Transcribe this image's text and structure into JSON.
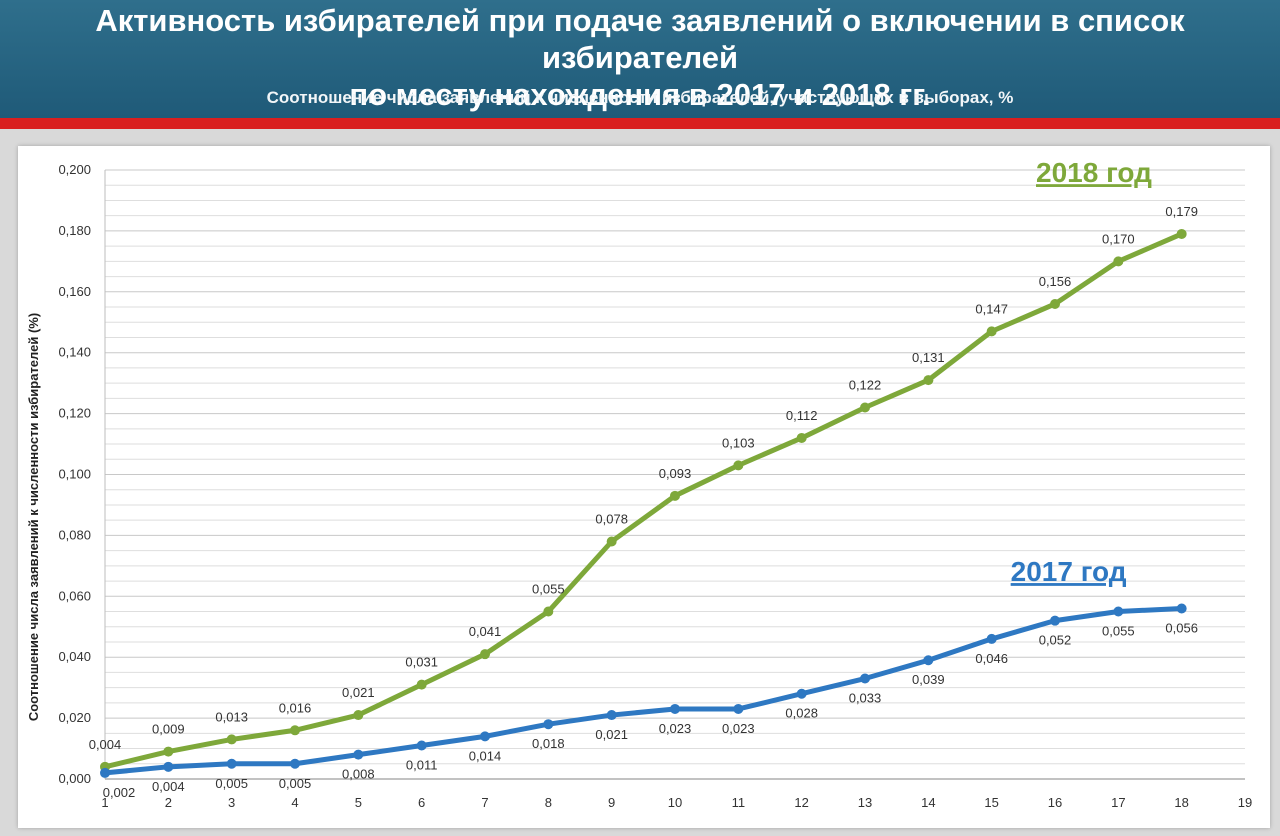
{
  "header": {
    "title_line1": "Активность избирателей при подаче заявлений о включении в список избирателей",
    "title_line2": "по месту нахождения в 2017 и 2018 гг.",
    "subtitle": "Соотношение числа заявлений к численности избирателей, участвующих в выборах, %"
  },
  "colors": {
    "header_bg": "#24637f",
    "red_bar": "#d91f1f",
    "series_2018": "#7ea83a",
    "series_2017": "#2e78c2"
  },
  "chart_data": {
    "type": "line",
    "ylabel": "Соотношение числа заявлений к численности избирателей (%)",
    "xlabel": "",
    "xlim": [
      1,
      19
    ],
    "ylim": [
      0,
      0.2
    ],
    "x_ticks": [
      1,
      2,
      3,
      4,
      5,
      6,
      7,
      8,
      9,
      10,
      11,
      12,
      13,
      14,
      15,
      16,
      17,
      18,
      19
    ],
    "y_ticks": [
      0.0,
      0.02,
      0.04,
      0.06,
      0.08,
      0.1,
      0.12,
      0.14,
      0.16,
      0.18,
      0.2
    ],
    "y_tick_labels": [
      "0,000",
      "0,020",
      "0,040",
      "0,060",
      "0,080",
      "0,100",
      "0,120",
      "0,140",
      "0,160",
      "0,180",
      "0,200"
    ],
    "grid": true,
    "series": [
      {
        "name": "2018 год",
        "color": "#7ea83a",
        "x": [
          1,
          2,
          3,
          4,
          5,
          6,
          7,
          8,
          9,
          10,
          11,
          12,
          13,
          14,
          15,
          16,
          17,
          18
        ],
        "values": [
          0.004,
          0.009,
          0.013,
          0.016,
          0.021,
          0.031,
          0.041,
          0.055,
          0.078,
          0.093,
          0.103,
          0.112,
          0.122,
          0.131,
          0.147,
          0.156,
          0.17,
          0.179
        ],
        "labels": [
          "0,004",
          "0,009",
          "0,013",
          "0,016",
          "0,021",
          "0,031",
          "0,041",
          "0,055",
          "0,078",
          "0,093",
          "0,103",
          "0,112",
          "0,122",
          "0,131",
          "0,147",
          "0,156",
          "0,170",
          "0,179"
        ],
        "label_position": "above"
      },
      {
        "name": "2017 год",
        "color": "#2e78c2",
        "x": [
          1,
          2,
          3,
          4,
          5,
          6,
          7,
          8,
          9,
          10,
          11,
          12,
          13,
          14,
          15,
          16,
          17,
          18
        ],
        "values": [
          0.002,
          0.004,
          0.005,
          0.005,
          0.008,
          0.011,
          0.014,
          0.018,
          0.021,
          0.023,
          0.023,
          0.028,
          0.033,
          0.039,
          0.046,
          0.052,
          0.055,
          0.056
        ],
        "labels": [
          "0,002",
          "0,004",
          "0,005",
          "0,005",
          "0,008",
          "0,011",
          "0,014",
          "0,018",
          "0,021",
          "0,023",
          "0,023",
          "0,028",
          "0,033",
          "0,039",
          "0,046",
          "0,052",
          "0,055",
          "0,056"
        ],
        "label_position": "below"
      }
    ]
  }
}
